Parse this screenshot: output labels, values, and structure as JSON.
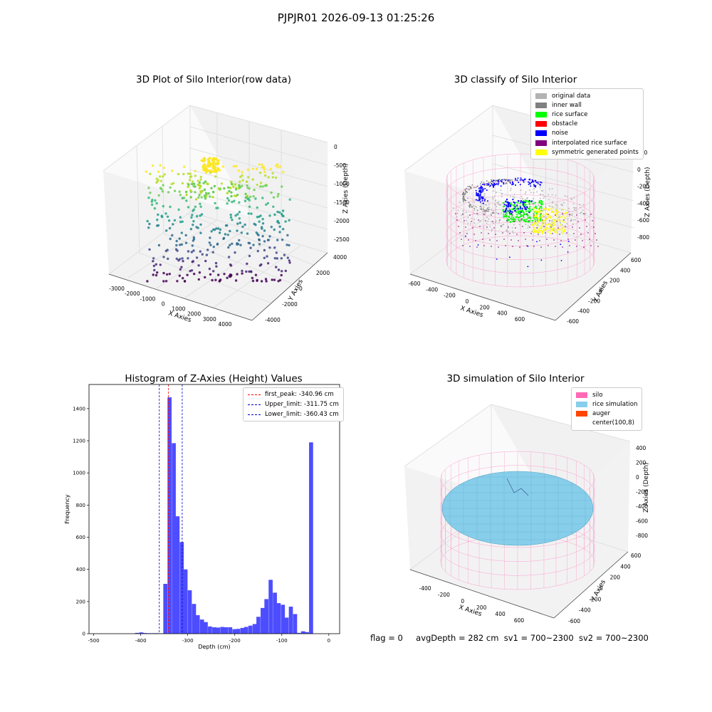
{
  "suptitle": "PJPJR01 2026-09-13 01:25:26",
  "status": {
    "flag": "flag = 0",
    "avg_depth": "avgDepth = 282 cm",
    "sv1": "sv1 = 700~2300",
    "sv2": "sv2 = 700~2300"
  },
  "chart_data": [
    {
      "type": "scatter",
      "title": "3D Plot of Silo Interior(row data)",
      "xlabel": "X Axies",
      "ylabel": "Y Axies",
      "zlabel": "Z Axies (Depth)",
      "x_ticks": [
        "-3000",
        "-2000",
        "-1000",
        "0",
        "1000",
        "2000",
        "3000",
        "4000"
      ],
      "y_ticks": [
        "-4000",
        "-2000",
        "0",
        "2000",
        "4000"
      ],
      "z_ticks": [
        "0",
        "-500",
        "-1000",
        "-1500",
        "-2000",
        "-2500"
      ],
      "colormap": "viridis"
    },
    {
      "type": "scatter",
      "title": "3D classify of Silo Interior",
      "xlabel": "X Axies",
      "ylabel": "Y Axies",
      "zlabel": "Z Axies (Depth)",
      "x_ticks": [
        "-600",
        "-400",
        "-200",
        "0",
        "200",
        "400",
        "600"
      ],
      "y_ticks": [
        "-600",
        "-400",
        "-200",
        "0",
        "200",
        "400",
        "600"
      ],
      "z_ticks": [
        "200",
        "0",
        "-200",
        "-400",
        "-600",
        "-800"
      ],
      "legend": [
        {
          "label": "original data",
          "color": "#b3b3b3"
        },
        {
          "label": "inner wall",
          "color": "#808080"
        },
        {
          "label": "rice surface",
          "color": "#00ff00"
        },
        {
          "label": "obstacle",
          "color": "#ff0000"
        },
        {
          "label": "noise",
          "color": "#0000ff"
        },
        {
          "label": "interpolated rice surface",
          "color": "#800080"
        },
        {
          "label": "symmetric generated points",
          "color": "#ffff00"
        }
      ]
    },
    {
      "type": "bar",
      "title": "Histogram of Z-Axies (Height) Values",
      "xlabel": "Depth (cm)",
      "ylabel": "Frequency",
      "xlim": [
        -510,
        23
      ],
      "ylim": [
        0,
        1550
      ],
      "x_ticks": [
        -500,
        -400,
        -300,
        -200,
        -100,
        0
      ],
      "y_ticks": [
        0,
        200,
        400,
        600,
        800,
        1000,
        1200,
        1400
      ],
      "bin_width": 8.6,
      "bins": [
        {
          "x": -412,
          "v": 5
        },
        {
          "x": -403,
          "v": 8
        },
        {
          "x": -395,
          "v": 4
        },
        {
          "x": -386,
          "v": 3
        },
        {
          "x": -377,
          "v": 3
        },
        {
          "x": -369,
          "v": 3
        },
        {
          "x": -360,
          "v": 2
        },
        {
          "x": -352,
          "v": 310
        },
        {
          "x": -343,
          "v": 1470
        },
        {
          "x": -334,
          "v": 1185
        },
        {
          "x": -326,
          "v": 730
        },
        {
          "x": -317,
          "v": 570
        },
        {
          "x": -309,
          "v": 400
        },
        {
          "x": -300,
          "v": 270
        },
        {
          "x": -291,
          "v": 185
        },
        {
          "x": -283,
          "v": 115
        },
        {
          "x": -274,
          "v": 88
        },
        {
          "x": -266,
          "v": 72
        },
        {
          "x": -257,
          "v": 45
        },
        {
          "x": -248,
          "v": 40
        },
        {
          "x": -240,
          "v": 38
        },
        {
          "x": -231,
          "v": 42
        },
        {
          "x": -223,
          "v": 40
        },
        {
          "x": -214,
          "v": 40
        },
        {
          "x": -205,
          "v": 28
        },
        {
          "x": -197,
          "v": 30
        },
        {
          "x": -188,
          "v": 36
        },
        {
          "x": -180,
          "v": 42
        },
        {
          "x": -171,
          "v": 50
        },
        {
          "x": -162,
          "v": 60
        },
        {
          "x": -154,
          "v": 105
        },
        {
          "x": -145,
          "v": 160
        },
        {
          "x": -137,
          "v": 215
        },
        {
          "x": -128,
          "v": 335
        },
        {
          "x": -119,
          "v": 255
        },
        {
          "x": -111,
          "v": 190
        },
        {
          "x": -102,
          "v": 180
        },
        {
          "x": -94,
          "v": 100
        },
        {
          "x": -85,
          "v": 168
        },
        {
          "x": -76,
          "v": 122
        },
        {
          "x": -68,
          "v": 5
        },
        {
          "x": -59,
          "v": 15
        },
        {
          "x": -51,
          "v": 10
        },
        {
          "x": -42,
          "v": 1190
        }
      ],
      "lines": [
        {
          "label": "first_peak: -340.96 cm",
          "x": -340.96,
          "color": "#ff0000"
        },
        {
          "label": "Upper_limit: -311.75 cm",
          "x": -311.75,
          "color": "#0000cc"
        },
        {
          "label": "Lower_limit: -360.43 cm",
          "x": -360.43,
          "color": "#0000cc"
        }
      ],
      "bar_color": "#4d4dff"
    },
    {
      "type": "scatter",
      "title": "3D simulation of Silo Interior",
      "xlabel": "X Axies",
      "ylabel": "Y Axies",
      "zlabel": "Z Axies (Depth)",
      "x_ticks": [
        "-400",
        "-200",
        "0",
        "200",
        "400",
        "600"
      ],
      "y_ticks": [
        "-600",
        "-400",
        "-200",
        "0",
        "200",
        "400",
        "600"
      ],
      "z_ticks": [
        "400",
        "200",
        "0",
        "-200",
        "-400",
        "-600",
        "-800"
      ],
      "legend": [
        {
          "label": "silo",
          "color": "#ff69b4"
        },
        {
          "label": "rice simulation",
          "color": "#87ceeb"
        },
        {
          "label": "auger",
          "color": "#ff4500"
        },
        {
          "label": "center(100,8)",
          "color": ""
        }
      ]
    }
  ]
}
